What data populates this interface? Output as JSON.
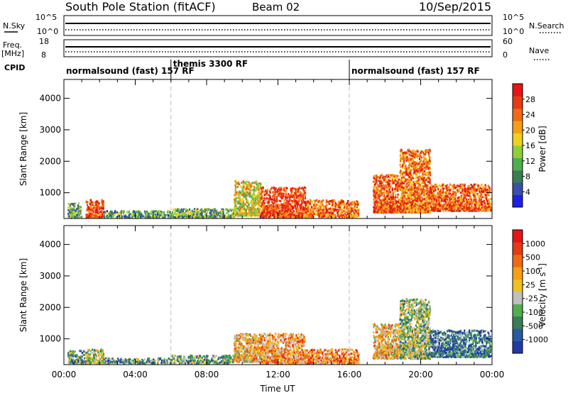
{
  "header": {
    "station": "South Pole Station (fitACF)",
    "beam": "Beam 02",
    "date": "10/Sep/2015"
  },
  "top_panels": {
    "nsky_label": "N.Sky",
    "nsky_ticks": [
      "10^5",
      "10^0"
    ],
    "nsearch_label": "N.Search",
    "nsearch_ticks": [
      "10^5",
      "10^0"
    ],
    "freq_label": "Freq.",
    "freq_unit": "[MHz]",
    "freq_ticks": [
      "18",
      "8"
    ],
    "nave_label": "Nave",
    "nave_ticks": [
      "60",
      "0"
    ],
    "cpid_label": "CPID"
  },
  "cpid_segments": [
    {
      "label": "normalsound (fast) 157 RF",
      "start": 0,
      "end": 6
    },
    {
      "label": "themis 3300 RF",
      "start": 6,
      "end": 16
    },
    {
      "label": "normalsound (fast) 157 RF",
      "start": 16,
      "end": 24
    }
  ],
  "chart_data": [
    {
      "type": "heatmap",
      "name": "power",
      "ylabel": "Slant Range [km]",
      "xlim": [
        0,
        24
      ],
      "ylim": [
        180,
        4600
      ],
      "y_ticks": [
        "1000",
        "2000",
        "3000",
        "4000"
      ],
      "colorbar_label": "Power [dB]",
      "colorbar_ticks": [
        "4",
        "8",
        "12",
        "16",
        "20",
        "24",
        "28"
      ],
      "colorbar_colors": [
        "#1f1fe6",
        "#3a4fa8",
        "#3a7d55",
        "#4fae4f",
        "#8fcf3a",
        "#f0d020",
        "#f5a014",
        "#f06a14",
        "#e63a14",
        "#e61414"
      ],
      "regions": [
        {
          "t": [
            0.2,
            0.9
          ],
          "r": [
            250,
            700
          ],
          "level": 0.35
        },
        {
          "t": [
            1.2,
            2.2
          ],
          "r": [
            250,
            800
          ],
          "level": 0.85
        },
        {
          "t": [
            2.2,
            6.0
          ],
          "r": [
            250,
            450
          ],
          "level": 0.3
        },
        {
          "t": [
            6.0,
            9.5
          ],
          "r": [
            250,
            520
          ],
          "level": 0.35
        },
        {
          "t": [
            9.5,
            11.0
          ],
          "r": [
            300,
            1400
          ],
          "level": 0.55
        },
        {
          "t": [
            11.0,
            13.5
          ],
          "r": [
            250,
            1200
          ],
          "level": 0.85
        },
        {
          "t": [
            13.5,
            16.5
          ],
          "r": [
            250,
            800
          ],
          "level": 0.75
        },
        {
          "t": [
            17.3,
            18.8
          ],
          "r": [
            400,
            1600
          ],
          "level": 0.8
        },
        {
          "t": [
            18.8,
            20.5
          ],
          "r": [
            400,
            2400
          ],
          "level": 0.75
        },
        {
          "t": [
            20.5,
            23.9
          ],
          "r": [
            450,
            1300
          ],
          "level": 0.8
        }
      ]
    },
    {
      "type": "heatmap",
      "name": "velocity",
      "ylabel": "Slant Range [km]",
      "xlabel": "Time UT",
      "xlim": [
        0,
        24
      ],
      "ylim": [
        180,
        4600
      ],
      "x_ticks": [
        "00:00",
        "04:00",
        "08:00",
        "12:00",
        "16:00",
        "20:00",
        "00:00"
      ],
      "y_ticks": [
        "1000",
        "2000",
        "3000",
        "4000"
      ],
      "colorbar_label": "Velocity [m s",
      "colorbar_label_sup": "-1",
      "colorbar_label_end": "]",
      "colorbar_ticks": [
        "1000",
        "500",
        "100",
        "25",
        "-25",
        "-100",
        "-500",
        "-1000"
      ],
      "colorbar_colors": [
        "#1f3aa8",
        "#2a5aa0",
        "#3a7d55",
        "#4fae4f",
        "#c0c0c0",
        "#f0c020",
        "#f5a014",
        "#f06a14",
        "#e63a14",
        "#e61414"
      ],
      "regions": [
        {
          "t": [
            0.2,
            1.2
          ],
          "r": [
            250,
            650
          ],
          "level": 0.3
        },
        {
          "t": [
            1.2,
            2.2
          ],
          "r": [
            250,
            700
          ],
          "level": 0.45
        },
        {
          "t": [
            2.2,
            6.0
          ],
          "r": [
            250,
            420
          ],
          "level": 0.3
        },
        {
          "t": [
            6.0,
            9.5
          ],
          "r": [
            250,
            500
          ],
          "level": 0.35
        },
        {
          "t": [
            9.5,
            11.0
          ],
          "r": [
            300,
            1200
          ],
          "level": 0.6
        },
        {
          "t": [
            11.0,
            13.5
          ],
          "r": [
            250,
            1200
          ],
          "level": 0.65
        },
        {
          "t": [
            13.5,
            16.5
          ],
          "r": [
            250,
            700
          ],
          "level": 0.7
        },
        {
          "t": [
            17.3,
            18.8
          ],
          "r": [
            400,
            1500
          ],
          "level": 0.6
        },
        {
          "t": [
            18.8,
            20.5
          ],
          "r": [
            400,
            2300
          ],
          "level": 0.4
        },
        {
          "t": [
            20.5,
            23.9
          ],
          "r": [
            450,
            1300
          ],
          "level": 0.2
        }
      ]
    }
  ]
}
